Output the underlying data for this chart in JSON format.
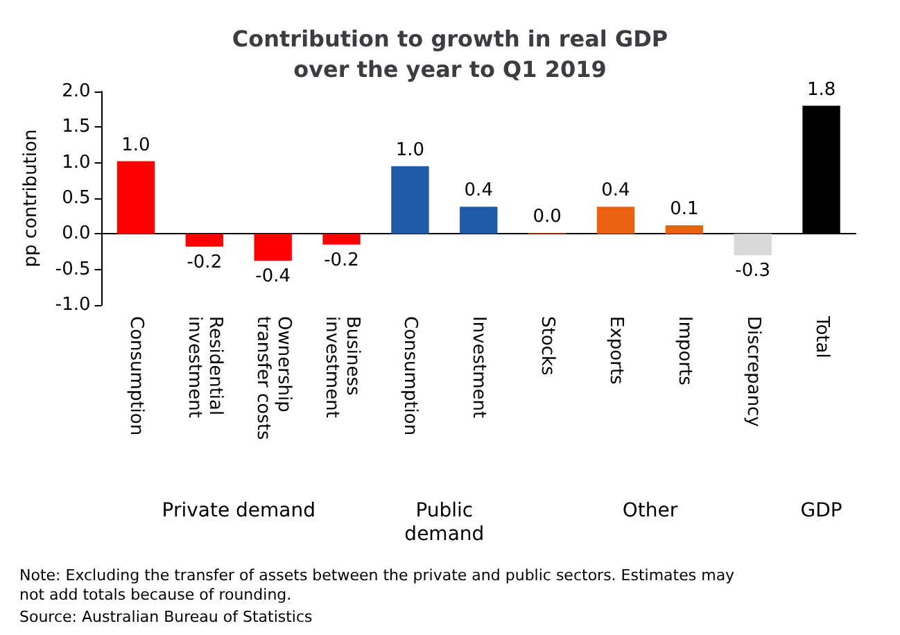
{
  "chart_data": {
    "type": "bar",
    "title": "Contribution to growth in real GDP\nover the year to Q1 2019",
    "ylabel": "pp contribution",
    "categories": [
      "Consumption",
      "Residential investment",
      "Ownership transfer costs",
      "Business investment",
      "Consumption",
      "Investment",
      "Stocks",
      "Exports",
      "Imports",
      "Discrepancy",
      "Total"
    ],
    "values": [
      1.02,
      -0.18,
      -0.38,
      -0.15,
      0.95,
      0.38,
      0.01,
      0.38,
      0.12,
      -0.3,
      1.8
    ],
    "value_labels": [
      "1.0",
      "-0.2",
      "-0.4",
      "-0.2",
      "1.0",
      "0.4",
      "0.0",
      "0.4",
      "0.1",
      "-0.3",
      "1.8"
    ],
    "colors": [
      "#ff0000",
      "#ff0000",
      "#ff0000",
      "#ff0000",
      "#1f5aa6",
      "#1f5aa6",
      "#e8620f",
      "#e8620f",
      "#e8620f",
      "#d9d9d9",
      "#000000"
    ],
    "ylim": [
      -1.0,
      2.0
    ],
    "yticks": [
      {
        "value": -1.0,
        "label": "-1.0"
      },
      {
        "value": -0.5,
        "label": "-0.5"
      },
      {
        "value": 0,
        "label": "0.0"
      },
      {
        "value": 0.5,
        "label": "0.5"
      },
      {
        "value": 1.0,
        "label": "1.0"
      },
      {
        "value": 1.5,
        "label": "1.5"
      },
      {
        "value": 2.0,
        "label": "2.0"
      }
    ],
    "annotations": [
      "Private demand",
      "Public\ndemand",
      "Other",
      "GDP",
      "Note: Excluding the transfer of assets between the private and public sectors. Estimates may not add totals because of rounding.",
      "Source: Australian Bureau of Statistics"
    ]
  }
}
